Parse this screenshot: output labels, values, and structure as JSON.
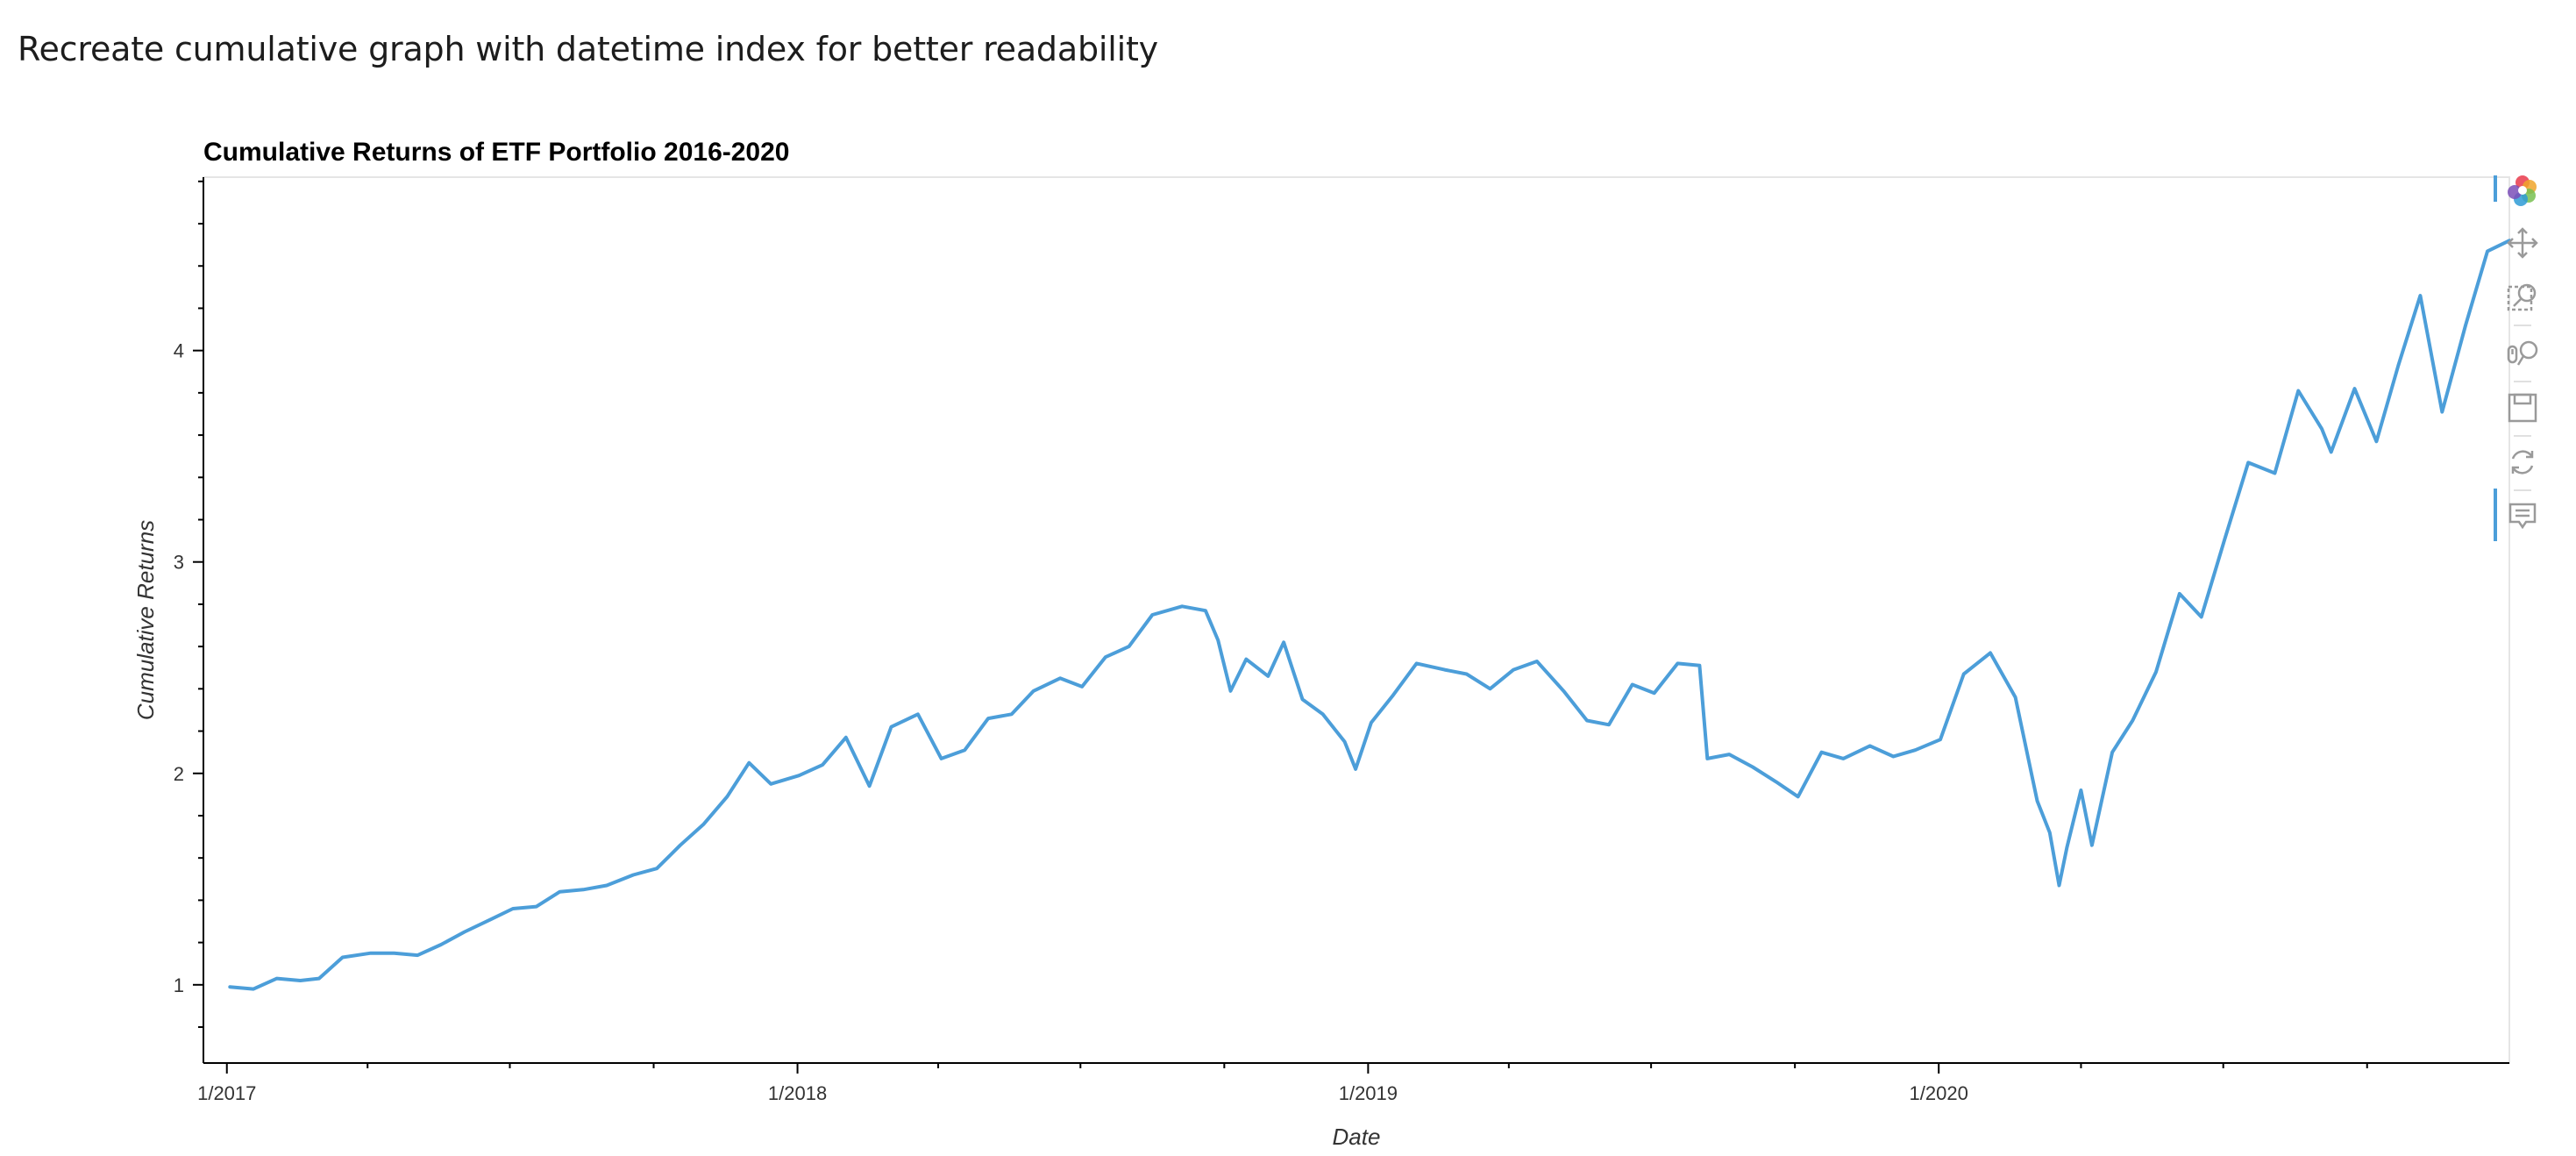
{
  "page": {
    "heading": "Recreate cumulative graph with datetime index for better readability"
  },
  "toolbar": {
    "tools": [
      {
        "name": "bokeh-logo-icon"
      },
      {
        "name": "pan-icon"
      },
      {
        "name": "box-zoom-icon"
      },
      {
        "name": "wheel-zoom-icon"
      },
      {
        "name": "save-icon"
      },
      {
        "name": "reset-icon"
      },
      {
        "name": "hover-icon"
      }
    ]
  },
  "chart_data": {
    "type": "line",
    "title": "Cumulative Returns of ETF Portfolio 2016-2020",
    "xlabel": "Date",
    "ylabel": "Cumulative Returns",
    "x_range": [
      "2016-12-17",
      "2020-12-31"
    ],
    "ylim": [
      0.63,
      4.82
    ],
    "x_ticks": [
      {
        "date": "2017-01-01",
        "label": "1/2017"
      },
      {
        "date": "2018-01-01",
        "label": "1/2018"
      },
      {
        "date": "2019-01-01",
        "label": "1/2019"
      },
      {
        "date": "2020-01-01",
        "label": "1/2020"
      }
    ],
    "y_ticks": [
      1,
      2,
      3,
      4
    ],
    "grid": false,
    "color": "#4c9ed9",
    "series": [
      {
        "x": [
          "2017-01-03",
          "2017-01-18",
          "2017-02-02",
          "2017-02-17",
          "2017-03-01",
          "2017-03-16",
          "2017-04-03",
          "2017-04-18",
          "2017-05-03",
          "2017-05-18",
          "2017-06-02",
          "2017-06-19",
          "2017-07-03",
          "2017-07-18",
          "2017-08-02",
          "2017-08-17",
          "2017-09-01",
          "2017-09-18",
          "2017-10-03",
          "2017-10-18",
          "2017-11-02",
          "2017-11-17",
          "2017-12-01",
          "2017-12-15",
          "2018-01-02",
          "2018-01-17",
          "2018-02-01",
          "2018-02-16",
          "2018-03-02",
          "2018-03-19",
          "2018-04-03",
          "2018-04-18",
          "2018-05-03",
          "2018-05-18",
          "2018-06-01",
          "2018-06-18",
          "2018-07-02",
          "2018-07-17",
          "2018-08-01",
          "2018-08-16",
          "2018-09-04",
          "2018-09-19",
          "2018-09-27",
          "2018-10-05",
          "2018-10-15",
          "2018-10-29",
          "2018-11-08",
          "2018-11-20",
          "2018-12-03",
          "2018-12-17",
          "2018-12-24",
          "2019-01-03",
          "2019-01-17",
          "2019-02-01",
          "2019-02-19",
          "2019-03-05",
          "2019-03-20",
          "2019-04-04",
          "2019-04-19",
          "2019-05-06",
          "2019-05-21",
          "2019-06-04",
          "2019-06-19",
          "2019-07-03",
          "2019-07-18",
          "2019-08-01",
          "2019-08-06",
          "2019-08-20",
          "2019-09-04",
          "2019-09-19",
          "2019-10-03",
          "2019-10-18",
          "2019-11-01",
          "2019-11-18",
          "2019-12-03",
          "2019-12-17",
          "2020-01-02",
          "2020-01-17",
          "2020-02-03",
          "2020-02-19",
          "2020-03-04",
          "2020-03-12",
          "2020-03-18",
          "2020-03-23",
          "2020-04-01",
          "2020-04-08",
          "2020-04-21",
          "2020-05-04",
          "2020-05-19",
          "2020-06-03",
          "2020-06-17",
          "2020-07-02",
          "2020-07-17",
          "2020-08-03",
          "2020-08-18",
          "2020-09-02",
          "2020-09-08",
          "2020-09-23",
          "2020-10-07",
          "2020-10-21",
          "2020-11-04",
          "2020-11-18",
          "2020-12-03",
          "2020-12-17",
          "2020-12-31"
        ],
        "values": [
          0.99,
          0.98,
          1.03,
          1.02,
          1.03,
          1.13,
          1.15,
          1.15,
          1.14,
          1.19,
          1.25,
          1.31,
          1.36,
          1.37,
          1.44,
          1.45,
          1.47,
          1.52,
          1.55,
          1.66,
          1.76,
          1.89,
          2.05,
          1.95,
          1.99,
          2.04,
          2.17,
          1.94,
          2.22,
          2.28,
          2.07,
          2.11,
          2.26,
          2.28,
          2.39,
          2.45,
          2.41,
          2.55,
          2.6,
          2.75,
          2.79,
          2.77,
          2.63,
          2.39,
          2.54,
          2.46,
          2.62,
          2.35,
          2.28,
          2.15,
          2.02,
          2.24,
          2.37,
          2.52,
          2.49,
          2.47,
          2.4,
          2.49,
          2.53,
          2.39,
          2.25,
          2.23,
          2.42,
          2.38,
          2.52,
          2.51,
          2.07,
          2.09,
          2.03,
          1.96,
          1.89,
          2.1,
          2.07,
          2.13,
          2.08,
          2.11,
          2.16,
          2.47,
          2.57,
          2.36,
          1.87,
          1.72,
          1.47,
          1.65,
          1.92,
          1.66,
          2.1,
          2.25,
          2.48,
          2.85,
          2.74,
          3.11,
          3.47,
          3.42,
          3.81,
          3.63,
          3.52,
          3.82,
          3.57,
          3.93,
          4.26,
          3.71,
          4.12,
          4.47,
          4.52
        ]
      }
    ]
  }
}
